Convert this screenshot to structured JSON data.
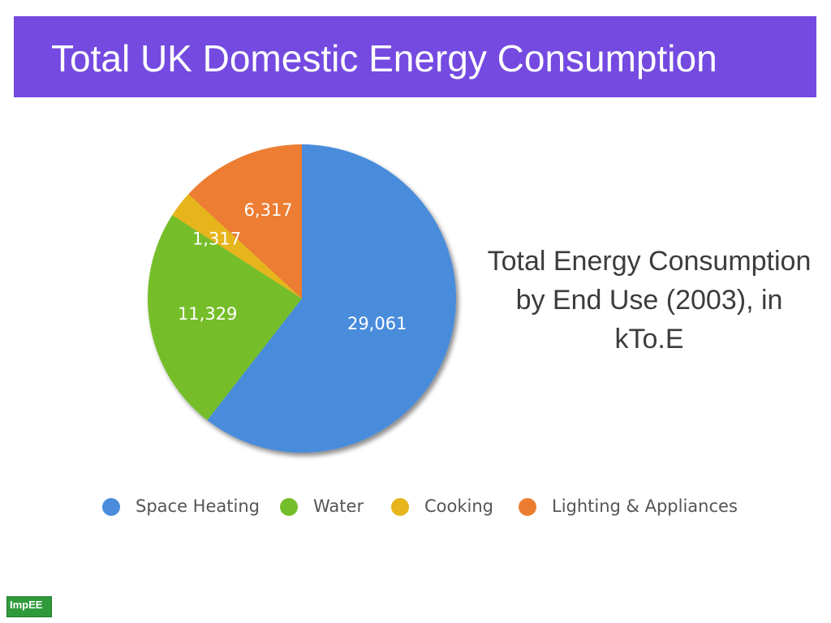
{
  "header": {
    "title": "Total UK Domestic Energy Consumption"
  },
  "caption": "Total Energy Consumption by End Use (2003), in kTo.E",
  "logo": {
    "text": "ImpEE"
  },
  "chart_data": {
    "type": "pie",
    "start_angle_deg": 0,
    "direction": "clockwise",
    "slices": [
      {
        "label": "Space Heating",
        "value": 29061,
        "value_label": "29,061",
        "color": "#4a8cdb"
      },
      {
        "label": "Water",
        "value": 11329,
        "value_label": "11,329",
        "color": "#74be2b"
      },
      {
        "label": "Cooking",
        "value": 1317,
        "value_label": "1,317",
        "color": "#e6b51c"
      },
      {
        "label": "Lighting & Appliances",
        "value": 6317,
        "value_label": "6,317",
        "color": "#ec7d30"
      }
    ],
    "legend_position": "bottom"
  }
}
